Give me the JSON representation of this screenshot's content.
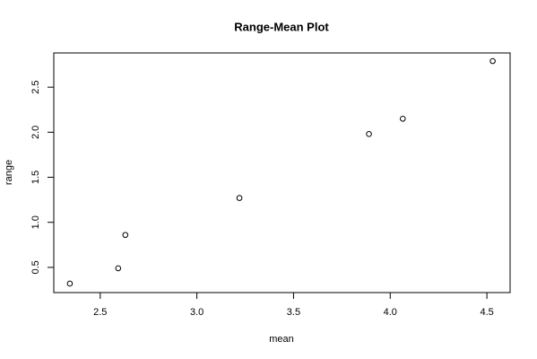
{
  "chart_data": {
    "type": "scatter",
    "title": "Range-Mean Plot",
    "x_label": "mean",
    "y_label": "range",
    "x": [
      2.343,
      2.593,
      2.63,
      3.22,
      3.89,
      4.065,
      4.53
    ],
    "values": [
      0.32,
      0.49,
      0.86,
      1.27,
      1.98,
      2.15,
      2.79
    ],
    "color": "#000000",
    "xlim": [
      2.26,
      4.62
    ],
    "xticks": [
      {
        "value": 2.5,
        "label": "2.5"
      },
      {
        "value": 3,
        "label": "3.0"
      },
      {
        "value": 3.5,
        "label": "3.5"
      },
      {
        "value": 4,
        "label": "4.0"
      },
      {
        "value": 4.5,
        "label": "4.5"
      }
    ],
    "ylim": [
      0.22,
      2.88
    ],
    "yticks": [
      {
        "value": 0.5,
        "label": "0.5"
      },
      {
        "value": 1,
        "label": "1.0"
      },
      {
        "value": 1.5,
        "label": "1.5"
      },
      {
        "value": 2,
        "label": "2.0"
      },
      {
        "value": 2.5,
        "label": "2.5"
      }
    ],
    "grid": false
  }
}
